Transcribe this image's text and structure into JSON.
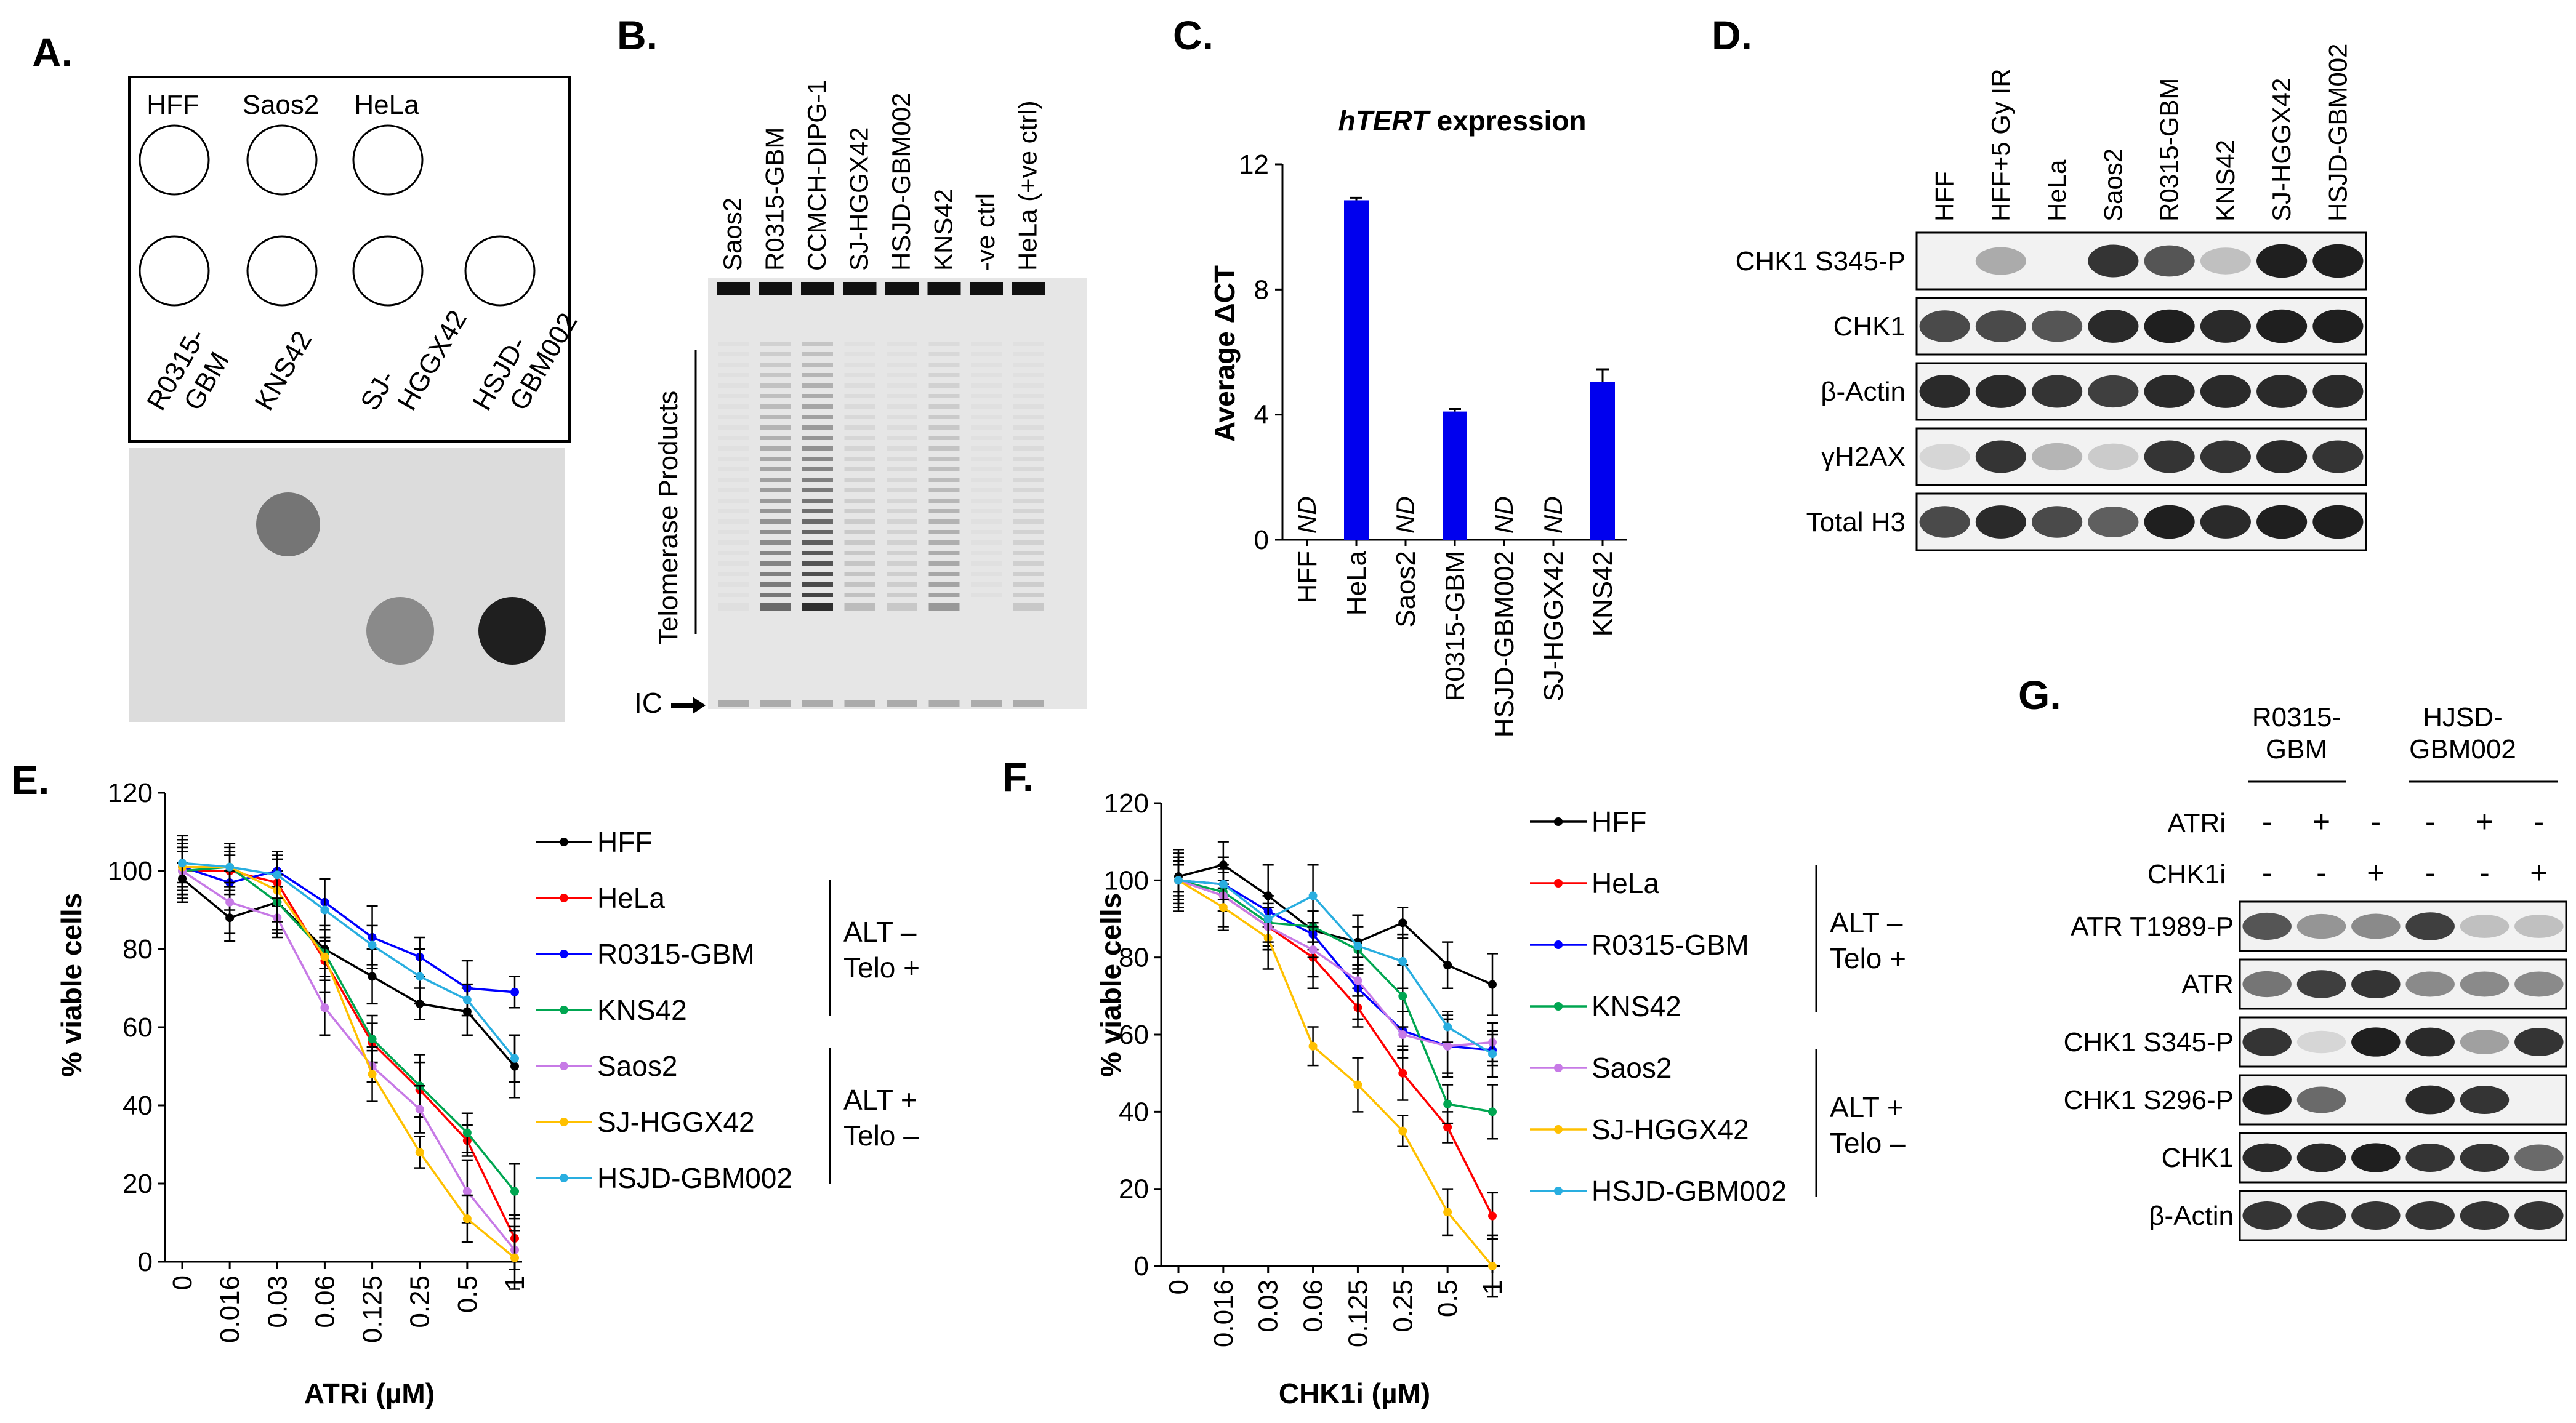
{
  "panels": {
    "a": "A.",
    "b": "B.",
    "c": "C.",
    "d": "D.",
    "e": "E.",
    "f": "F.",
    "g": "G."
  },
  "panel_a": {
    "row1": [
      "HFF",
      "Saos2",
      "HeLa"
    ],
    "row2": [
      {
        "l1": "R0315-",
        "l2": "GBM"
      },
      {
        "l1": "KNS42",
        "l2": ""
      },
      {
        "l1": "SJ-",
        "l2": "HGGX42"
      },
      {
        "l1": "HSJD-",
        "l2": "GBM002"
      }
    ],
    "dot_intensity": {
      "row1": [
        0.0,
        0.55,
        0.0
      ],
      "row2": [
        0.0,
        0.0,
        0.45,
        0.95
      ]
    }
  },
  "panel_b": {
    "lanes": [
      "Saos2",
      "R0315-GBM",
      "CCMCH-DIPG-1",
      "SJ-HGGX42",
      "HSJD-GBM002",
      "KNS42",
      "-ve ctrl",
      "HeLa (+ve ctrl)"
    ],
    "products_label": "Telomerase Products",
    "ic_label": "IC",
    "ladder_intensity": [
      0.05,
      0.55,
      0.8,
      0.2,
      0.15,
      0.35,
      0.02,
      0.15
    ]
  },
  "panel_c": {
    "chart_data": {
      "type": "bar",
      "title_italic": "hTERT",
      "title_rest": " expression",
      "ylabel": "Average ΔCT",
      "categories": [
        "HFF",
        "HeLa",
        "Saos2",
        "R0315-GBM",
        "HSJD-GBM002",
        "SJ-HGGX42",
        "KNS42"
      ],
      "values": [
        null,
        10.85,
        null,
        4.1,
        null,
        null,
        5.05
      ],
      "errors": [
        0,
        0.08,
        0,
        0.08,
        0,
        0,
        0.4
      ],
      "value_labels": [
        "ND",
        "",
        "ND",
        "",
        "ND",
        "ND",
        ""
      ],
      "ylim": [
        0,
        12
      ],
      "yticks": [
        "0",
        "4",
        "8",
        "12"
      ],
      "bar_color": "#0000ee"
    }
  },
  "panel_d": {
    "lanes": [
      "HFF",
      "HFF+5 Gy IR",
      "HeLa",
      "Saos2",
      "R0315-GBM",
      "KNS42",
      "SJ-HGGX42",
      "HSJD-GBM002"
    ],
    "blots": [
      {
        "label": "CHK1 S345-P",
        "bands": [
          0.0,
          0.3,
          0.0,
          0.85,
          0.7,
          0.2,
          0.95,
          0.95
        ]
      },
      {
        "label": "CHK1",
        "bands": [
          0.75,
          0.75,
          0.7,
          0.9,
          0.95,
          0.9,
          0.95,
          0.95
        ]
      },
      {
        "label": "β-Actin",
        "bands": [
          0.9,
          0.9,
          0.85,
          0.8,
          0.9,
          0.9,
          0.9,
          0.9
        ]
      },
      {
        "label": "γH2AX",
        "bands": [
          0.1,
          0.85,
          0.25,
          0.15,
          0.85,
          0.85,
          0.9,
          0.85
        ]
      },
      {
        "label": "Total H3",
        "bands": [
          0.75,
          0.9,
          0.75,
          0.65,
          0.95,
          0.9,
          0.95,
          0.95
        ]
      }
    ]
  },
  "legend": {
    "alt_neg": "ALT –",
    "telo_pos": "Telo +",
    "alt_pos": "ALT +",
    "telo_neg": "Telo –"
  },
  "panel_e": {
    "chart_data": {
      "type": "line",
      "xlabel": "ATRi (µM)",
      "ylabel": "% viable cells",
      "x": [
        "0",
        "0.016",
        "0.03",
        "0.06",
        "0.125",
        "0.25",
        "0.5",
        "1"
      ],
      "ylim": [
        0,
        120
      ],
      "yticks": [
        "0",
        "20",
        "40",
        "60",
        "80",
        "100",
        "120"
      ],
      "series": [
        {
          "name": "HFF",
          "color": "#000000",
          "values": [
            98,
            88,
            92,
            80,
            73,
            66,
            64,
            50
          ]
        },
        {
          "name": "HeLa",
          "color": "#ff0000",
          "values": [
            100,
            100,
            97,
            77,
            56,
            44,
            31,
            6
          ]
        },
        {
          "name": "R0315-GBM",
          "color": "#0000ff",
          "values": [
            101,
            97,
            100,
            92,
            83,
            78,
            70,
            69
          ]
        },
        {
          "name": "KNS42",
          "color": "#00a651",
          "values": [
            100,
            101,
            92,
            79,
            57,
            45,
            33,
            18
          ]
        },
        {
          "name": "Saos2",
          "color": "#c77ae6",
          "values": [
            100,
            92,
            88,
            65,
            50,
            39,
            18,
            3
          ]
        },
        {
          "name": "SJ-HGGX42",
          "color": "#ffc000",
          "values": [
            101,
            101,
            95,
            78,
            48,
            28,
            11,
            1
          ]
        },
        {
          "name": "HSJD-GBM002",
          "color": "#29aee0",
          "values": [
            102,
            101,
            99,
            90,
            81,
            73,
            67,
            52
          ]
        }
      ]
    }
  },
  "panel_f": {
    "chart_data": {
      "type": "line",
      "xlabel": "CHK1i (µM)",
      "ylabel": "% viable cells",
      "x": [
        "0",
        "0.016",
        "0.03",
        "0.06",
        "0.125",
        "0.25",
        "0.5",
        "1"
      ],
      "ylim": [
        0,
        120
      ],
      "yticks": [
        "0",
        "20",
        "40",
        "60",
        "80",
        "100",
        "120"
      ],
      "series": [
        {
          "name": "HFF",
          "color": "#000000",
          "values": [
            101,
            104,
            96,
            87,
            84,
            89,
            78,
            73
          ]
        },
        {
          "name": "HeLa",
          "color": "#ff0000",
          "values": [
            100,
            96,
            88,
            80,
            67,
            50,
            36,
            13
          ]
        },
        {
          "name": "R0315-GBM",
          "color": "#0000ff",
          "values": [
            100,
            99,
            92,
            86,
            72,
            61,
            57,
            56
          ]
        },
        {
          "name": "KNS42",
          "color": "#00a651",
          "values": [
            100,
            97,
            89,
            88,
            82,
            70,
            42,
            40
          ]
        },
        {
          "name": "Saos2",
          "color": "#c77ae6",
          "values": [
            100,
            96,
            88,
            82,
            74,
            60,
            57,
            58
          ]
        },
        {
          "name": "SJ-HGGX42",
          "color": "#ffc000",
          "values": [
            100,
            93,
            85,
            57,
            47,
            35,
            14,
            0
          ]
        },
        {
          "name": "HSJD-GBM002",
          "color": "#29aee0",
          "values": [
            100,
            99,
            90,
            96,
            83,
            79,
            62,
            55
          ]
        }
      ]
    }
  },
  "panel_g": {
    "group1_l1": "R0315-",
    "group1_l2": "GBM",
    "group2_l1": "HJSD-",
    "group2_l2": "GBM002",
    "rows": [
      {
        "label": "ATRi",
        "signs": [
          "-",
          "+",
          "-",
          "-",
          "+",
          "-"
        ]
      },
      {
        "label": "CHK1i",
        "signs": [
          "-",
          "-",
          "+",
          "-",
          "-",
          "+"
        ]
      }
    ],
    "blots": [
      {
        "label": "ATR T1989-P",
        "bands": [
          0.7,
          0.4,
          0.45,
          0.8,
          0.2,
          0.2
        ]
      },
      {
        "label": "ATR",
        "bands": [
          0.55,
          0.8,
          0.85,
          0.45,
          0.45,
          0.45
        ]
      },
      {
        "label": "CHK1 S345-P",
        "bands": [
          0.85,
          0.1,
          0.95,
          0.9,
          0.35,
          0.85
        ]
      },
      {
        "label": "CHK1 S296-P",
        "bands": [
          0.95,
          0.6,
          0.0,
          0.9,
          0.85,
          0.0
        ]
      },
      {
        "label": "CHK1",
        "bands": [
          0.9,
          0.9,
          0.95,
          0.85,
          0.85,
          0.6
        ]
      },
      {
        "label": "β-Actin",
        "bands": [
          0.85,
          0.85,
          0.85,
          0.85,
          0.85,
          0.85
        ]
      }
    ]
  }
}
